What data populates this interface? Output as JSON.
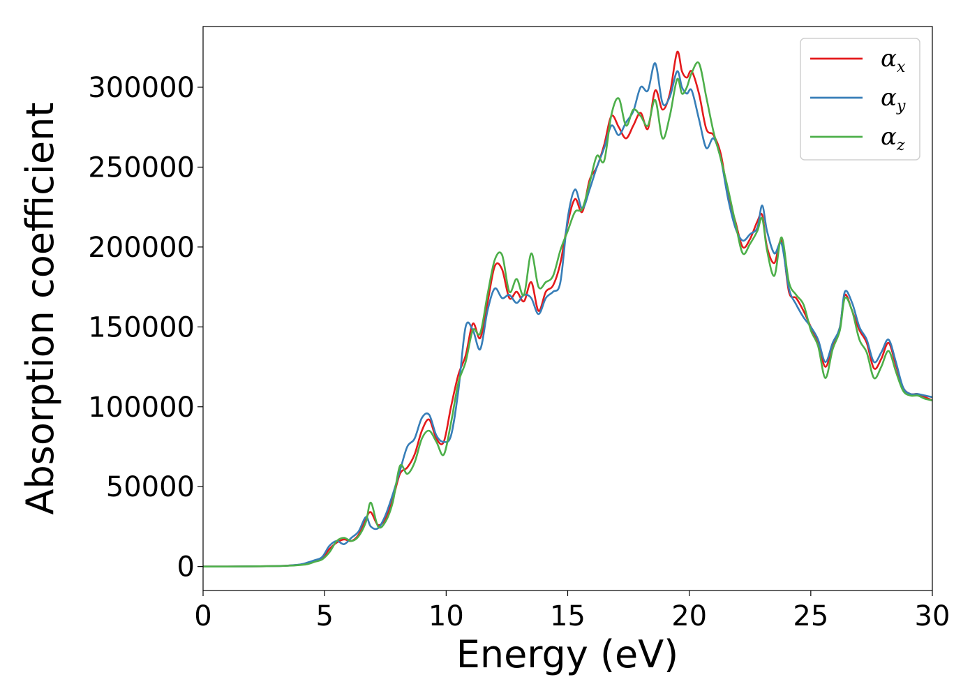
{
  "chart_data": {
    "type": "line",
    "xlabel": "Energy (eV)",
    "ylabel": "Absorption coefficient",
    "xlim": [
      0,
      30
    ],
    "ylim": [
      -15000,
      338000
    ],
    "x_ticks": [
      0,
      5,
      10,
      15,
      20,
      25,
      30
    ],
    "y_ticks": [
      0,
      50000,
      100000,
      150000,
      200000,
      250000,
      300000
    ],
    "x_tick_labels": [
      "0",
      "5",
      "10",
      "15",
      "20",
      "25",
      "30"
    ],
    "y_tick_labels": [
      "0",
      "50000",
      "100000",
      "150000",
      "200000",
      "250000",
      "300000"
    ],
    "grid": false,
    "legend_position": "top-right",
    "series": [
      {
        "name": "α",
        "subscript": "x",
        "color": "#e41a1c",
        "x": [
          0,
          1,
          2,
          3,
          3.5,
          4,
          4.3,
          4.6,
          4.9,
          5.2,
          5.5,
          5.8,
          6.1,
          6.4,
          6.7,
          6.9,
          7.2,
          7.5,
          7.8,
          8.1,
          8.4,
          8.7,
          9.0,
          9.3,
          9.6,
          9.9,
          10.2,
          10.5,
          10.8,
          11.1,
          11.4,
          11.7,
          12.0,
          12.3,
          12.6,
          12.9,
          13.2,
          13.5,
          13.8,
          14.1,
          14.4,
          14.7,
          15.0,
          15.3,
          15.6,
          15.9,
          16.2,
          16.5,
          16.8,
          17.1,
          17.4,
          17.7,
          18.0,
          18.3,
          18.6,
          18.9,
          19.2,
          19.5,
          19.7,
          19.9,
          20.1,
          20.4,
          20.7,
          21.0,
          21.3,
          21.6,
          21.9,
          22.2,
          22.5,
          22.8,
          23.0,
          23.2,
          23.5,
          23.8,
          24.1,
          24.4,
          24.7,
          25.0,
          25.3,
          25.6,
          25.9,
          26.2,
          26.4,
          26.7,
          27.0,
          27.3,
          27.6,
          27.9,
          28.2,
          28.5,
          28.8,
          29.1,
          29.4,
          29.7,
          30.0
        ],
        "y": [
          0,
          0,
          100,
          300,
          600,
          1200,
          2000,
          3500,
          5000,
          11000,
          15000,
          17000,
          16000,
          20000,
          30000,
          34000,
          26000,
          30000,
          42000,
          58000,
          62000,
          70000,
          85000,
          92000,
          80000,
          78000,
          100000,
          120000,
          132000,
          152000,
          143000,
          165000,
          188000,
          186000,
          168000,
          172000,
          166000,
          178000,
          160000,
          172000,
          176000,
          190000,
          215000,
          230000,
          222000,
          242000,
          250000,
          264000,
          282000,
          275000,
          268000,
          276000,
          284000,
          274000,
          298000,
          286000,
          296000,
          322000,
          310000,
          306000,
          310000,
          296000,
          274000,
          270000,
          258000,
          232000,
          216000,
          200000,
          205000,
          216000,
          220000,
          200000,
          190000,
          204000,
          172000,
          168000,
          160000,
          150000,
          140000,
          125000,
          138000,
          150000,
          170000,
          160000,
          148000,
          140000,
          124000,
          130000,
          140000,
          126000,
          112000,
          108000,
          108000,
          106000,
          104000
        ]
      },
      {
        "name": "α",
        "subscript": "y",
        "color": "#377eb8",
        "x": [
          0,
          1,
          2,
          3,
          3.5,
          4,
          4.3,
          4.6,
          4.9,
          5.2,
          5.5,
          5.8,
          6.1,
          6.4,
          6.7,
          6.9,
          7.2,
          7.5,
          7.8,
          8.1,
          8.4,
          8.7,
          9.0,
          9.3,
          9.6,
          9.9,
          10.2,
          10.5,
          10.8,
          11.1,
          11.4,
          11.7,
          12.0,
          12.3,
          12.6,
          12.9,
          13.2,
          13.5,
          13.8,
          14.1,
          14.4,
          14.7,
          15.0,
          15.3,
          15.6,
          15.9,
          16.2,
          16.5,
          16.8,
          17.1,
          17.4,
          17.7,
          18.0,
          18.3,
          18.6,
          18.9,
          19.2,
          19.5,
          19.7,
          19.9,
          20.1,
          20.4,
          20.7,
          21.0,
          21.3,
          21.6,
          21.9,
          22.2,
          22.5,
          22.8,
          23.0,
          23.2,
          23.5,
          23.8,
          24.1,
          24.4,
          24.7,
          25.0,
          25.3,
          25.6,
          25.9,
          26.2,
          26.4,
          26.7,
          27.0,
          27.3,
          27.6,
          27.9,
          28.2,
          28.5,
          28.8,
          29.1,
          29.4,
          29.7,
          30.0
        ],
        "y": [
          0,
          0,
          100,
          300,
          600,
          1300,
          2500,
          4000,
          6000,
          13000,
          16000,
          14000,
          18000,
          22000,
          31000,
          25000,
          24000,
          32000,
          45000,
          60000,
          75000,
          80000,
          93000,
          95000,
          82000,
          78000,
          82000,
          110000,
          150000,
          148000,
          136000,
          160000,
          174000,
          168000,
          170000,
          165000,
          170000,
          168000,
          158000,
          168000,
          172000,
          178000,
          218000,
          236000,
          224000,
          236000,
          250000,
          262000,
          276000,
          270000,
          278000,
          285000,
          300000,
          298000,
          315000,
          290000,
          294000,
          310000,
          300000,
          296000,
          298000,
          280000,
          262000,
          268000,
          255000,
          230000,
          212000,
          204000,
          208000,
          212000,
          226000,
          210000,
          196000,
          202000,
          174000,
          164000,
          156000,
          150000,
          142000,
          128000,
          140000,
          150000,
          172000,
          165000,
          150000,
          142000,
          128000,
          134000,
          142000,
          128000,
          112000,
          108000,
          108000,
          107000,
          106000
        ]
      },
      {
        "name": "α",
        "subscript": "z",
        "color": "#4daf4a",
        "x": [
          0,
          1,
          2,
          3,
          3.5,
          4,
          4.3,
          4.6,
          4.9,
          5.2,
          5.5,
          5.8,
          6.1,
          6.4,
          6.7,
          6.9,
          7.2,
          7.5,
          7.8,
          8.1,
          8.4,
          8.7,
          9.0,
          9.3,
          9.6,
          9.9,
          10.2,
          10.5,
          10.8,
          11.1,
          11.4,
          11.7,
          12.0,
          12.3,
          12.6,
          12.9,
          13.2,
          13.5,
          13.8,
          14.1,
          14.4,
          14.7,
          15.0,
          15.3,
          15.6,
          15.9,
          16.2,
          16.5,
          16.8,
          17.1,
          17.4,
          17.7,
          18.0,
          18.3,
          18.6,
          18.9,
          19.2,
          19.5,
          19.7,
          19.9,
          20.1,
          20.4,
          20.7,
          21.0,
          21.3,
          21.6,
          21.9,
          22.2,
          22.5,
          22.8,
          23.0,
          23.2,
          23.5,
          23.8,
          24.1,
          24.4,
          24.7,
          25.0,
          25.3,
          25.6,
          25.9,
          26.2,
          26.4,
          26.7,
          27.0,
          27.3,
          27.6,
          27.9,
          28.2,
          28.5,
          28.8,
          29.1,
          29.4,
          29.7,
          30.0
        ],
        "y": [
          0,
          0,
          100,
          300,
          500,
          1000,
          1500,
          3000,
          4500,
          9000,
          16000,
          18000,
          16000,
          19000,
          28000,
          40000,
          25000,
          28000,
          40000,
          63000,
          58000,
          65000,
          80000,
          85000,
          78000,
          70000,
          90000,
          115000,
          128000,
          148000,
          146000,
          170000,
          192000,
          195000,
          172000,
          180000,
          170000,
          196000,
          175000,
          178000,
          182000,
          198000,
          210000,
          222000,
          224000,
          240000,
          257000,
          254000,
          283000,
          293000,
          276000,
          286000,
          282000,
          276000,
          292000,
          268000,
          282000,
          305000,
          296000,
          300000,
          309000,
          315000,
          294000,
          272000,
          255000,
          236000,
          215000,
          196000,
          202000,
          210000,
          218000,
          198000,
          182000,
          206000,
          178000,
          170000,
          164000,
          148000,
          138000,
          118000,
          136000,
          148000,
          168000,
          160000,
          142000,
          134000,
          118000,
          125000,
          135000,
          122000,
          110000,
          107000,
          107000,
          105000,
          104000
        ]
      }
    ]
  }
}
